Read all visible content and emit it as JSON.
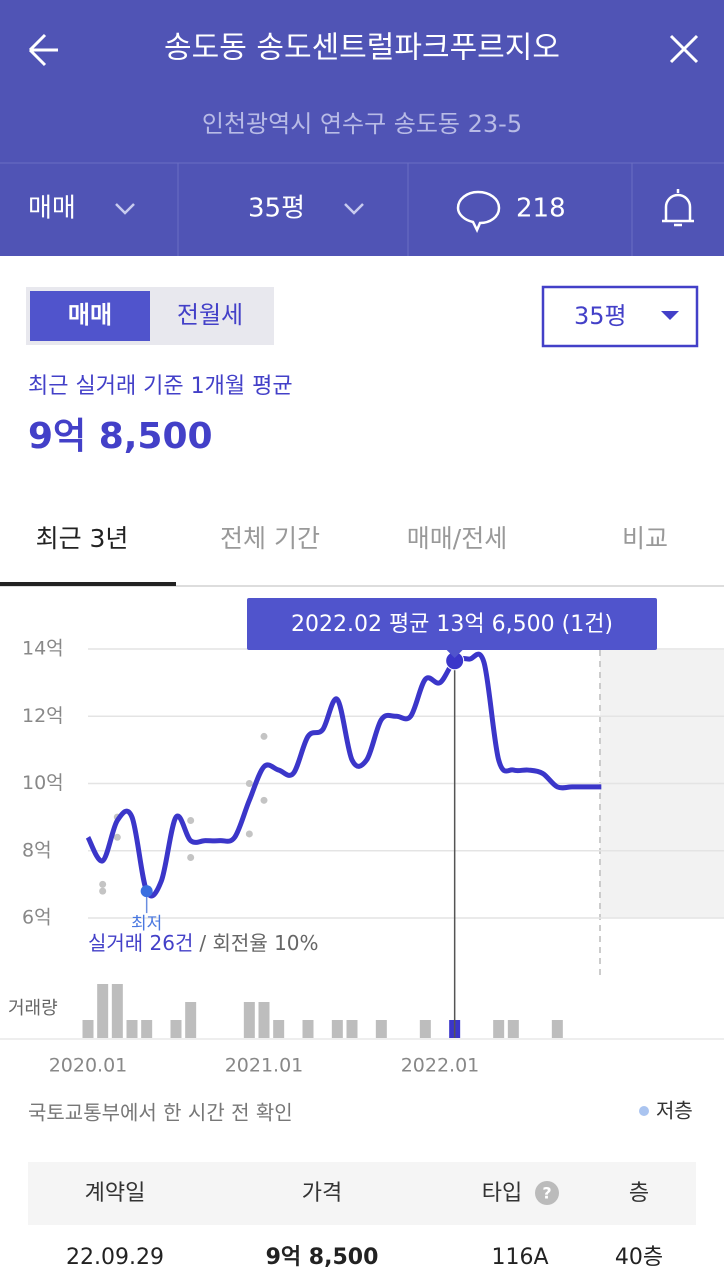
{
  "header": {
    "title": "송도동 송도센트럴파크푸르지오",
    "address": "인천광역시 연수구 송도동 23-5"
  },
  "toolbar": {
    "deal_type": "매매",
    "size": "35평",
    "comments": 218
  },
  "filters": {
    "options": [
      "매매",
      "전월세"
    ],
    "size": "35평"
  },
  "summary": {
    "label": "최근 실거래 기준 1개월 평균",
    "price": "9억 8,500"
  },
  "tabs": [
    "최근 3년",
    "전체 기간",
    "매매/전세",
    "비교"
  ],
  "chart_data": {
    "type": "line",
    "tooltip": "2022.02 평균 13억 6,500 (1건)",
    "low_label": "최저",
    "trade_count": "실거래 26건",
    "turnover": "/ 회전율 10%",
    "volume_label": "거래량",
    "legend": "저층",
    "categories": [
      "2020.01",
      null,
      null,
      null,
      null,
      null,
      null,
      null,
      null,
      null,
      null,
      null,
      "2021.01",
      null,
      null,
      null,
      null,
      null,
      null,
      null,
      null,
      null,
      null,
      null,
      "2022.01",
      null,
      null,
      null,
      null,
      null,
      null,
      null,
      null,
      null,
      null,
      null
    ],
    "values": [
      8.4,
      7.7,
      8.9,
      9.0,
      6.8,
      7.1,
      9.0,
      8.3,
      8.3,
      8.3,
      8.4,
      9.5,
      10.5,
      10.4,
      10.3,
      11.4,
      11.6,
      12.5,
      10.7,
      10.7,
      11.9,
      12.0,
      12.0,
      13.1,
      13.0,
      13.65,
      13.7,
      13.6,
      10.7,
      10.4,
      10.4,
      10.3,
      9.9,
      9.9,
      9.9,
      9.9
    ],
    "color": "#3b36c9",
    "highlight": 25,
    "low": 4,
    "trades": [
      [],
      [
        7.0,
        6.8
      ],
      [
        9.0,
        8.4
      ],
      [],
      [],
      [],
      [],
      [
        8.9,
        7.8
      ],
      [],
      [],
      [],
      [
        10.0,
        8.5
      ],
      [
        11.4,
        9.5
      ],
      [],
      [],
      [],
      [],
      [],
      [],
      [],
      [],
      [],
      [],
      [],
      [],
      [],
      [],
      [],
      [],
      [],
      [],
      [],
      [],
      [],
      [],
      []
    ],
    "volume": [
      1,
      3,
      3,
      1,
      1,
      0,
      1,
      2,
      0,
      0,
      0,
      2,
      2,
      1,
      0,
      1,
      0,
      1,
      1,
      0,
      1,
      0,
      0,
      1,
      0,
      1,
      0,
      0,
      1,
      1,
      0,
      0,
      1,
      0,
      0,
      0
    ],
    "ylim": [
      6,
      14
    ],
    "yticks": [
      {
        "value": 6,
        "label": "6억"
      },
      {
        "value": 8,
        "label": "8억"
      },
      {
        "value": 10,
        "label": "10억"
      },
      {
        "value": 12,
        "label": "12억"
      },
      {
        "value": 14,
        "label": "14억"
      }
    ],
    "grid": true
  },
  "source": "국토교통부에서 한 시간 전 확인",
  "table": {
    "columns": [
      "계약일",
      "가격",
      "타입",
      "층"
    ],
    "rows": [
      [
        "22.09.29",
        "9억 8,500",
        "116A",
        "40층"
      ]
    ]
  }
}
